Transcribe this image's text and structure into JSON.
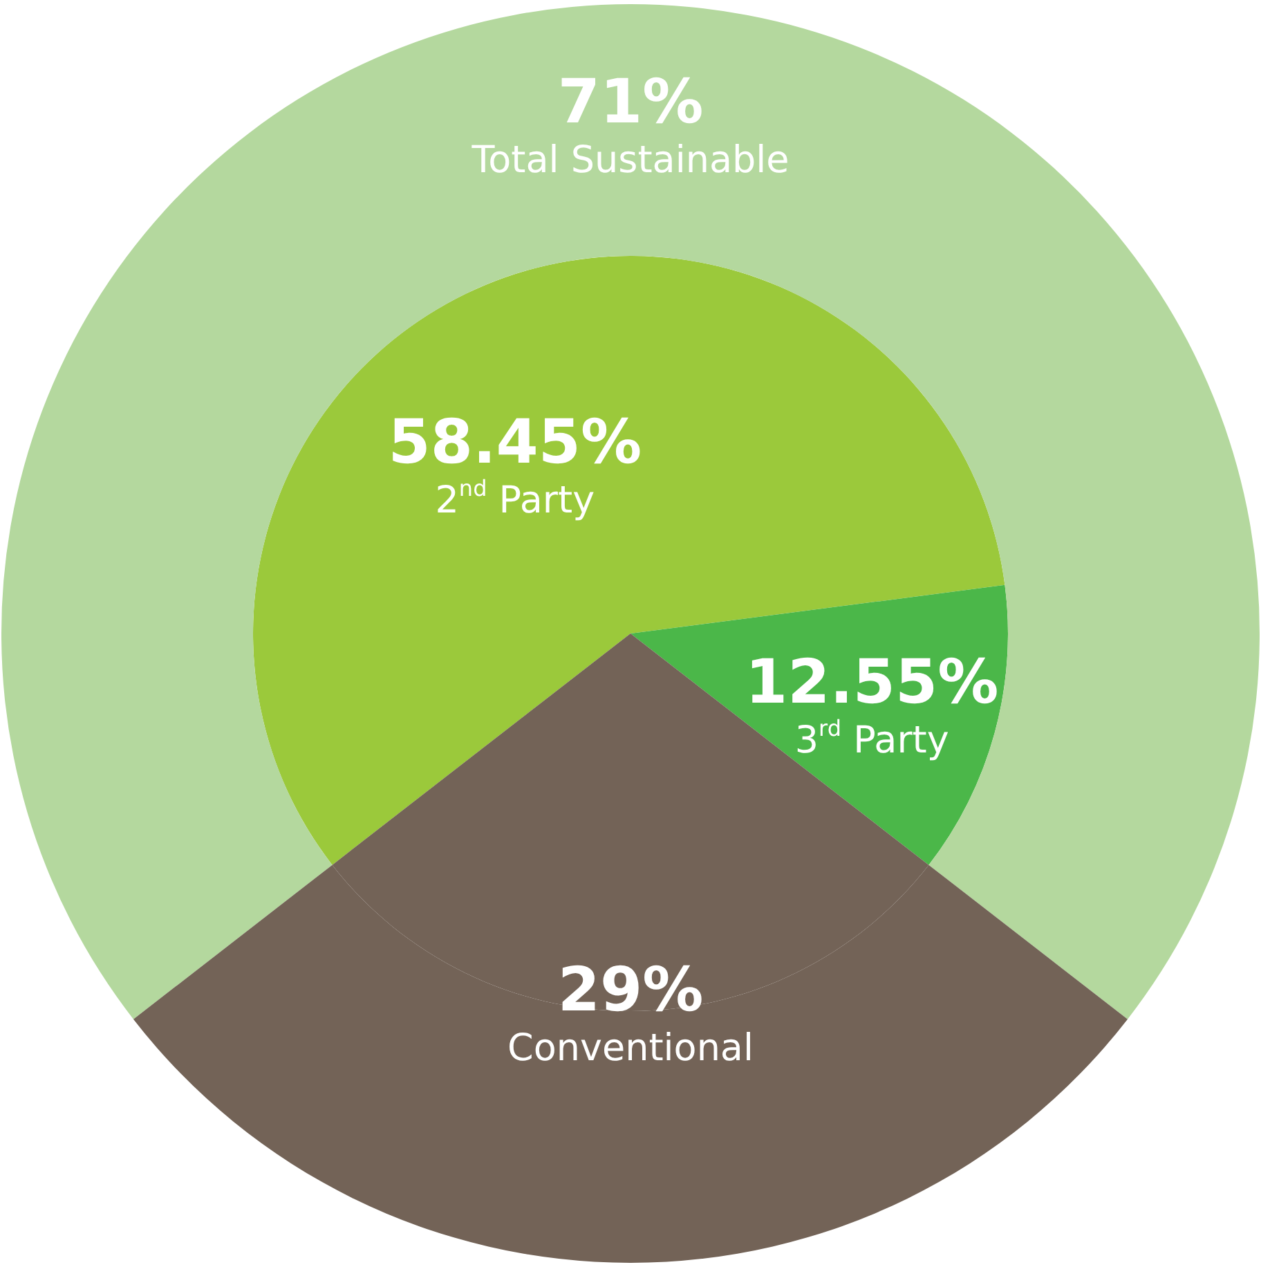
{
  "chart_data": [
    {
      "type": "donut",
      "categories": [
        "Total Sustainable",
        "Conventional"
      ],
      "values": [
        71,
        29
      ],
      "colors": [
        "#b4d89e",
        "#736357"
      ],
      "value_labels": [
        "71%",
        "29%"
      ]
    },
    {
      "type": "pie",
      "categories": [
        "2$^{nd}$ Party",
        "3$^{rd}$ Party",
        null
      ],
      "values": [
        58.45,
        12.55,
        29
      ],
      "colors": [
        "#9bc93b",
        "#4bb749",
        "#736357"
      ],
      "value_labels": [
        "58.45%",
        "12.55%",
        null
      ]
    }
  ]
}
